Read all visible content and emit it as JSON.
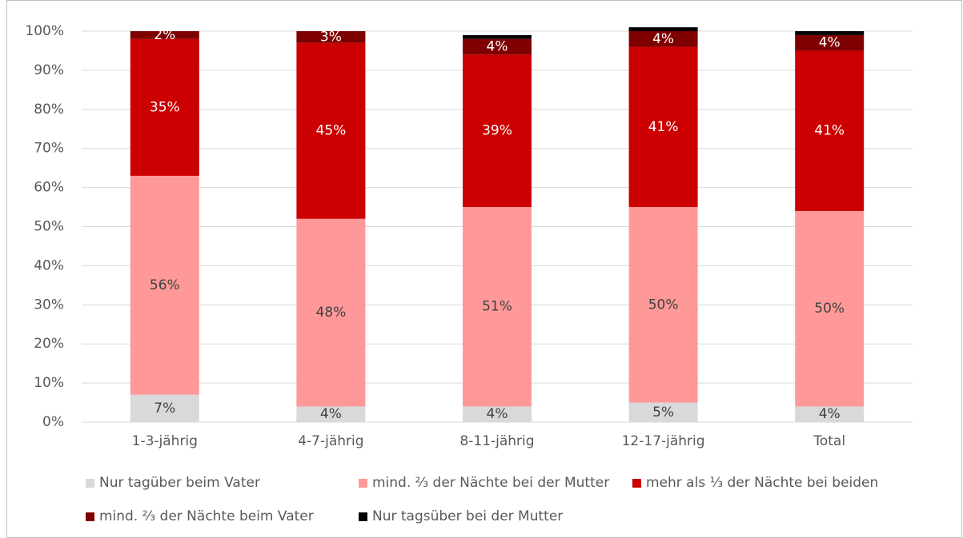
{
  "chart_data": {
    "type": "stacked_bar",
    "categories": [
      "1-3-jährig",
      "4-7-jährig",
      "8-11-jährig",
      "12-17-jährig",
      "Total"
    ],
    "series": [
      {
        "name": "Nur tagüber beim Vater",
        "color": "#d9d9d9",
        "values": [
          7,
          4,
          4,
          5,
          4
        ],
        "value_labels": [
          "7%",
          "4%",
          "4%",
          "5%",
          "4%"
        ]
      },
      {
        "name": "mind. ⅔ der Nächte bei der Mutter",
        "color": "#ff9999",
        "values": [
          56,
          48,
          51,
          50,
          50
        ],
        "value_labels": [
          "56%",
          "48%",
          "51%",
          "50%",
          "50%"
        ]
      },
      {
        "name": "mehr als ⅓ der Nächte bei beiden",
        "color": "#cc0000",
        "values": [
          35,
          45,
          39,
          41,
          41
        ],
        "value_labels": [
          "35%",
          "45%",
          "39%",
          "41%",
          "41%"
        ]
      },
      {
        "name": "mind. ⅔ der Nächte beim Vater",
        "color": "#7f0000",
        "values": [
          2,
          3,
          4,
          4,
          4
        ],
        "value_labels": [
          "2%",
          "3%",
          "4%",
          "4%",
          "4%"
        ]
      },
      {
        "name": "Nur tagsüber bei der Mutter",
        "color": "#000000",
        "values": [
          0,
          0,
          1,
          1,
          1
        ],
        "value_labels": [
          null,
          null,
          null,
          null,
          null
        ]
      }
    ],
    "ylim": [
      0,
      100
    ],
    "yticks": [
      {
        "value": 0,
        "label": "0%"
      },
      {
        "value": 10,
        "label": "10%"
      },
      {
        "value": 20,
        "label": "20%"
      },
      {
        "value": 30,
        "label": "30%"
      },
      {
        "value": 40,
        "label": "40%"
      },
      {
        "value": 50,
        "label": "50%"
      },
      {
        "value": 60,
        "label": "60%"
      },
      {
        "value": 70,
        "label": "70%"
      },
      {
        "value": 80,
        "label": "80%"
      },
      {
        "value": 90,
        "label": "90%"
      },
      {
        "value": 100,
        "label": "100%"
      }
    ],
    "grid": true,
    "legend": "bottom"
  }
}
